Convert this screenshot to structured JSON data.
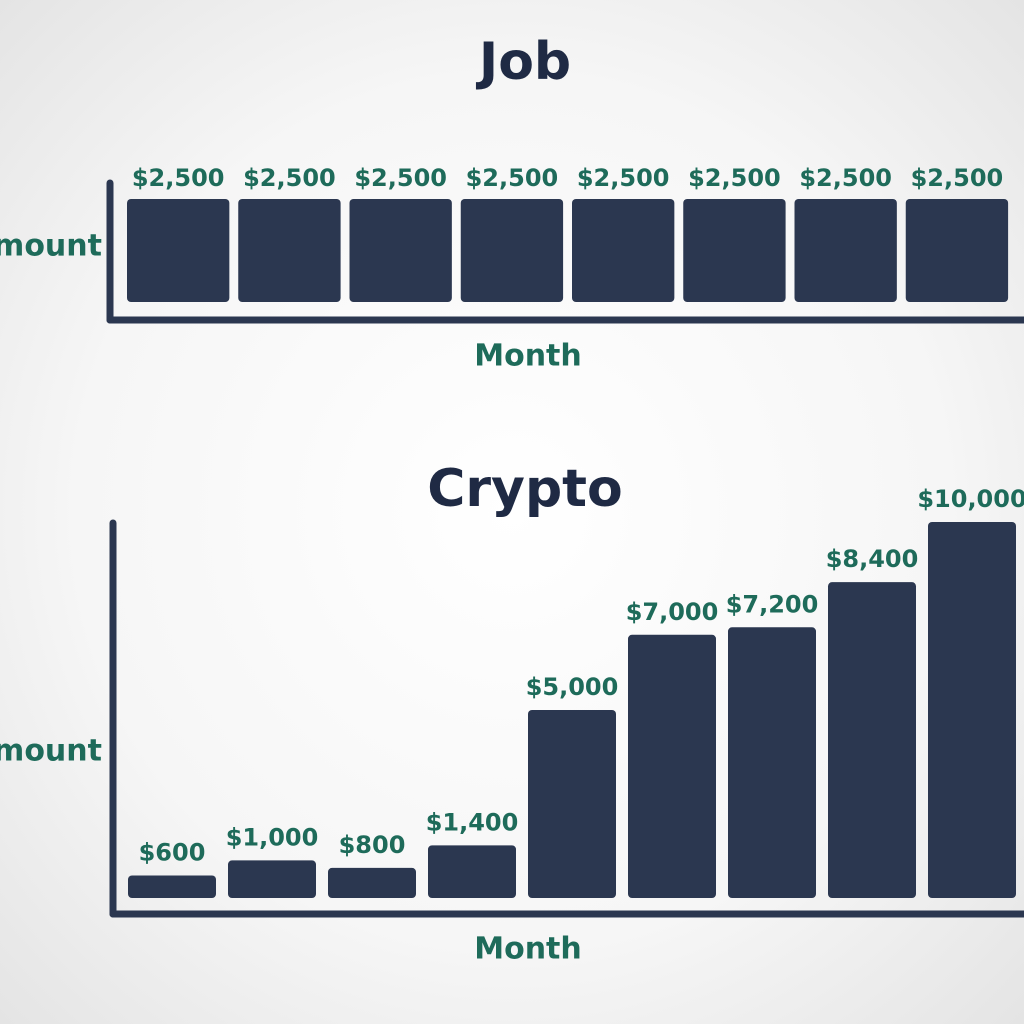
{
  "chart_data": [
    {
      "type": "bar",
      "title": "Job",
      "x_label": "Month",
      "y_label": "Amount",
      "categories": [
        null,
        null,
        null,
        null,
        null,
        null,
        null,
        null
      ],
      "values": [
        2500,
        2500,
        2500,
        2500,
        2500,
        2500,
        2500,
        2500
      ],
      "value_labels": [
        "$2,500",
        "$2,500",
        "$2,500",
        "$2,500",
        "$2,500",
        "$2,500",
        "$2,500",
        "$2,500"
      ],
      "color": "#2b3750",
      "ylim": [
        0,
        2500
      ]
    },
    {
      "type": "bar",
      "title": "Crypto",
      "x_label": "Month",
      "y_label": "Amount",
      "categories": [
        null,
        null,
        null,
        null,
        null,
        null,
        null,
        null,
        null
      ],
      "values": [
        600,
        1000,
        800,
        1400,
        5000,
        7000,
        7200,
        8400,
        10000
      ],
      "value_labels": [
        "$600",
        "$1,000",
        "$800",
        "$1,400",
        "$5,000",
        "$7,000",
        "$7,200",
        "$8,400",
        "$10,000"
      ],
      "color": "#2b3750",
      "ylim": [
        0,
        10000
      ]
    }
  ]
}
